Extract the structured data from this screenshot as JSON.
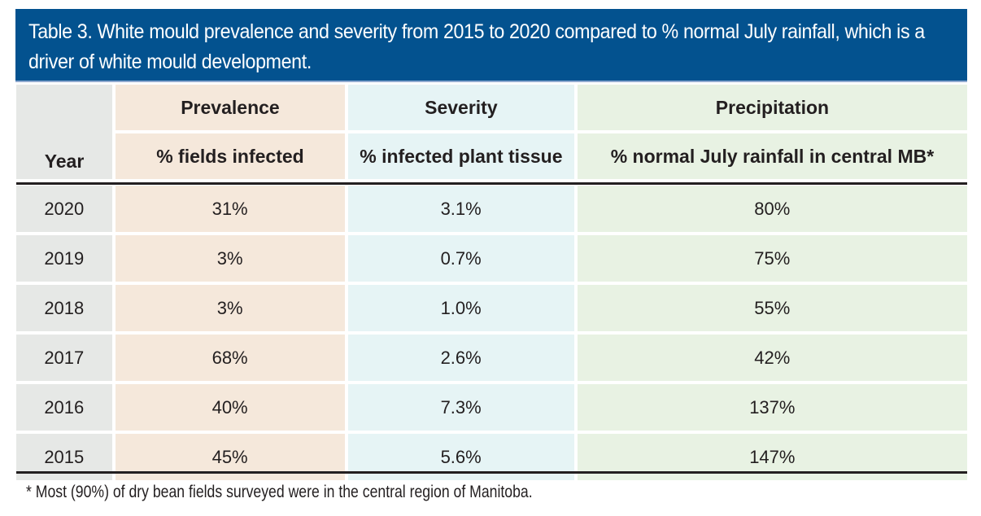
{
  "title": "Table 3. White mould prevalence and severity from 2015 to 2020 compared to % normal July rainfall, which is a driver of white mould development.",
  "colors": {
    "title_bar": "#03528f",
    "year_column": "#e6e8e6",
    "prevalence_column": "#f5e8db",
    "severity_column": "#e6f4f5",
    "precipitation_column": "#e8f2e3"
  },
  "table": {
    "headers": {
      "year": "Year",
      "groups": [
        "Prevalence",
        "Severity",
        "Precipitation"
      ],
      "units": [
        "% fields infected",
        "% infected plant tissue",
        "% normal July rainfall in central MB*"
      ]
    },
    "rows": [
      {
        "year": "2020",
        "prevalence": "31%",
        "severity": "3.1%",
        "precipitation": "80%"
      },
      {
        "year": "2019",
        "prevalence": "3%",
        "severity": "0.7%",
        "precipitation": "75%"
      },
      {
        "year": "2018",
        "prevalence": "3%",
        "severity": "1.0%",
        "precipitation": "55%"
      },
      {
        "year": "2017",
        "prevalence": "68%",
        "severity": "2.6%",
        "precipitation": "42%"
      },
      {
        "year": "2016",
        "prevalence": "40%",
        "severity": "7.3%",
        "precipitation": "137%"
      },
      {
        "year": "2015",
        "prevalence": "45%",
        "severity": "5.6%",
        "precipitation": "147%"
      }
    ]
  },
  "footnote": "* Most (90%) of dry bean fields surveyed were in the central region of Manitoba."
}
